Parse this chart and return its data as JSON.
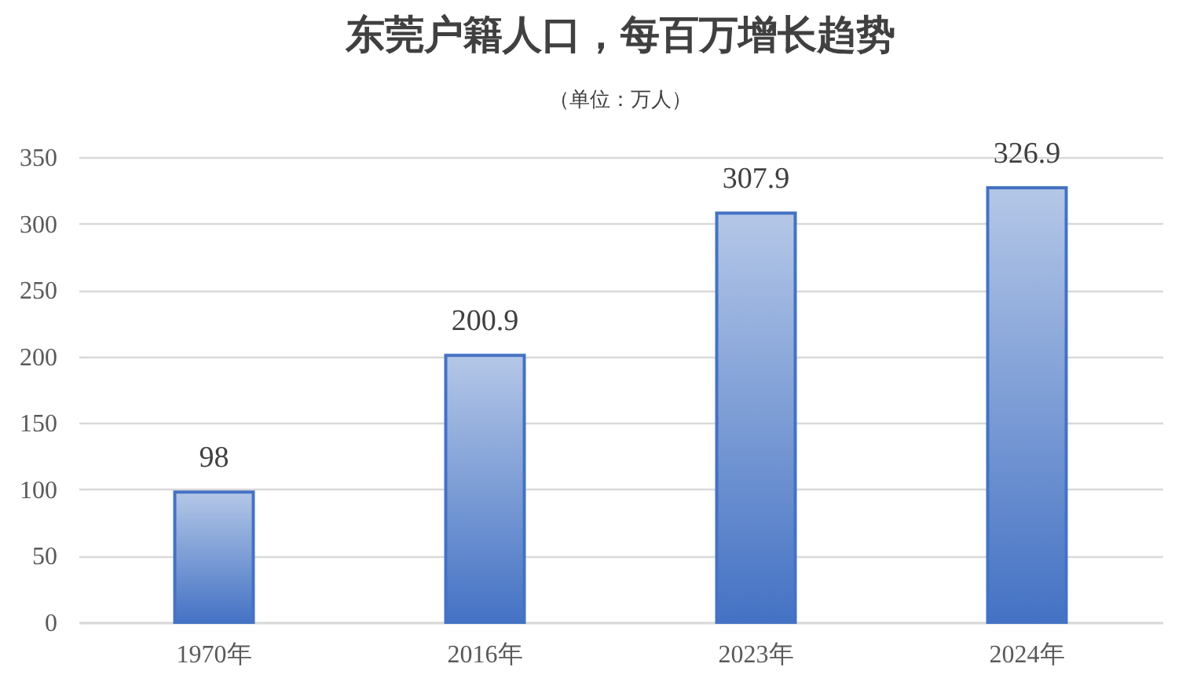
{
  "chart_data": {
    "type": "bar",
    "title": "东莞户籍人口，每百万增长趋势",
    "subtitle": "（单位：万人）",
    "categories": [
      "1970年",
      "2016年",
      "2023年",
      "2024年"
    ],
    "values": [
      98,
      200.9,
      307.9,
      326.9
    ],
    "color": "#4472c4",
    "ylim": [
      0,
      350
    ],
    "yticks": [
      0,
      50,
      100,
      150,
      200,
      250,
      300,
      350
    ],
    "grid": "y",
    "data_labels": true
  }
}
